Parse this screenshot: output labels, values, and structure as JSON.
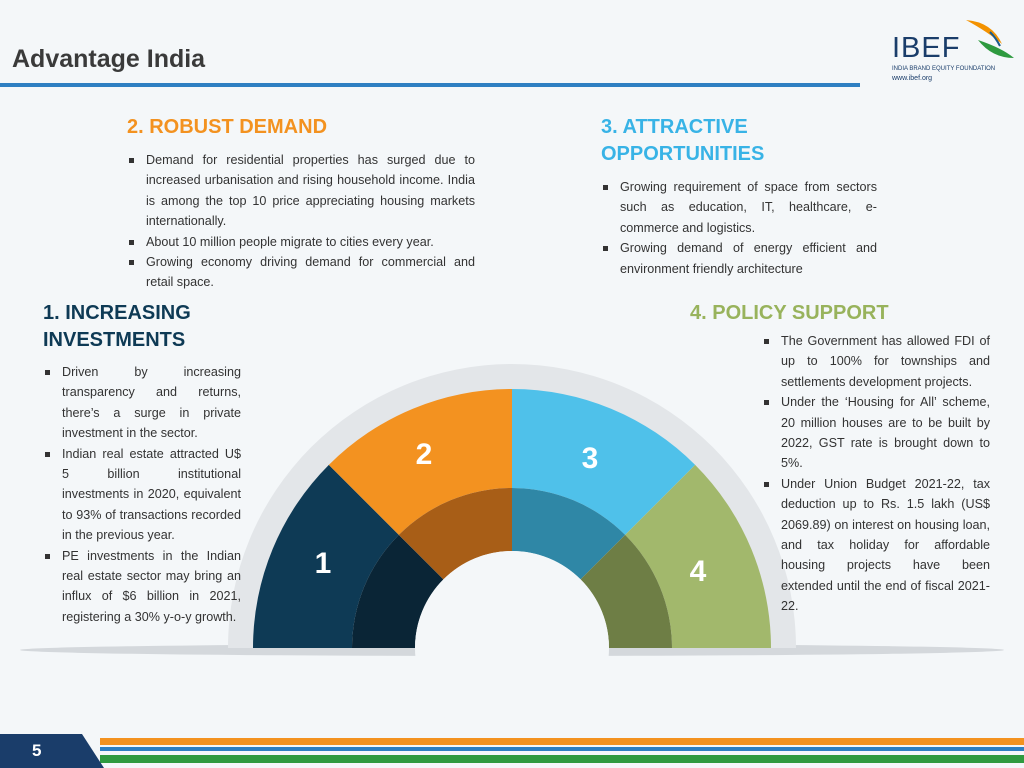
{
  "header": {
    "title": "Advantage India"
  },
  "logo": {
    "name": "IBEF",
    "subtitle": "INDIA BRAND EQUITY FOUNDATION",
    "url": "www.ibef.org"
  },
  "sections": [
    {
      "heading": "1. INCREASING INVESTMENTS",
      "bullets": [
        "Driven by increasing transparency and returns, there’s a surge in private investment in the sector.",
        "Indian real estate attracted U$ 5 billion institutional investments in 2020, equivalent to 93% of transactions recorded in the previous year.",
        "PE investments in the Indian real estate sector may bring an influx of $6 billion in 2021, registering a 30% y-o-y growth."
      ]
    },
    {
      "heading": "2. ROBUST DEMAND",
      "bullets": [
        "Demand for residential properties has surged due to increased urbanisation and rising household income. India is among the top 10 price appreciating housing markets internationally.",
        "About 10 million people migrate to cities every year.",
        "Growing economy driving demand for commercial and retail space."
      ]
    },
    {
      "heading": "3. ATTRACTIVE OPPORTUNITIES",
      "bullets": [
        "Growing requirement of space from sectors such as education, IT, healthcare, e-commerce and logistics.",
        "Growing demand of energy efficient and environment friendly architecture"
      ]
    },
    {
      "heading": "4. POLICY SUPPORT",
      "bullets": [
        "The Government has allowed FDI of up to 100% for townships and settlements development projects.",
        "Under the ‘Housing for All’ scheme, 20 million houses are to be built by 2022, GST rate is brought down to 5%.",
        "Under Union Budget 2021-22, tax deduction up to Rs. 1.5 lakh (US$ 2069.89) on interest on housing loan, and tax holiday for affordable housing projects have been extended until the end of fiscal 2021-22."
      ]
    }
  ],
  "gauge_labels": [
    "1",
    "2",
    "3",
    "4"
  ],
  "footer": {
    "page_number": "5"
  }
}
